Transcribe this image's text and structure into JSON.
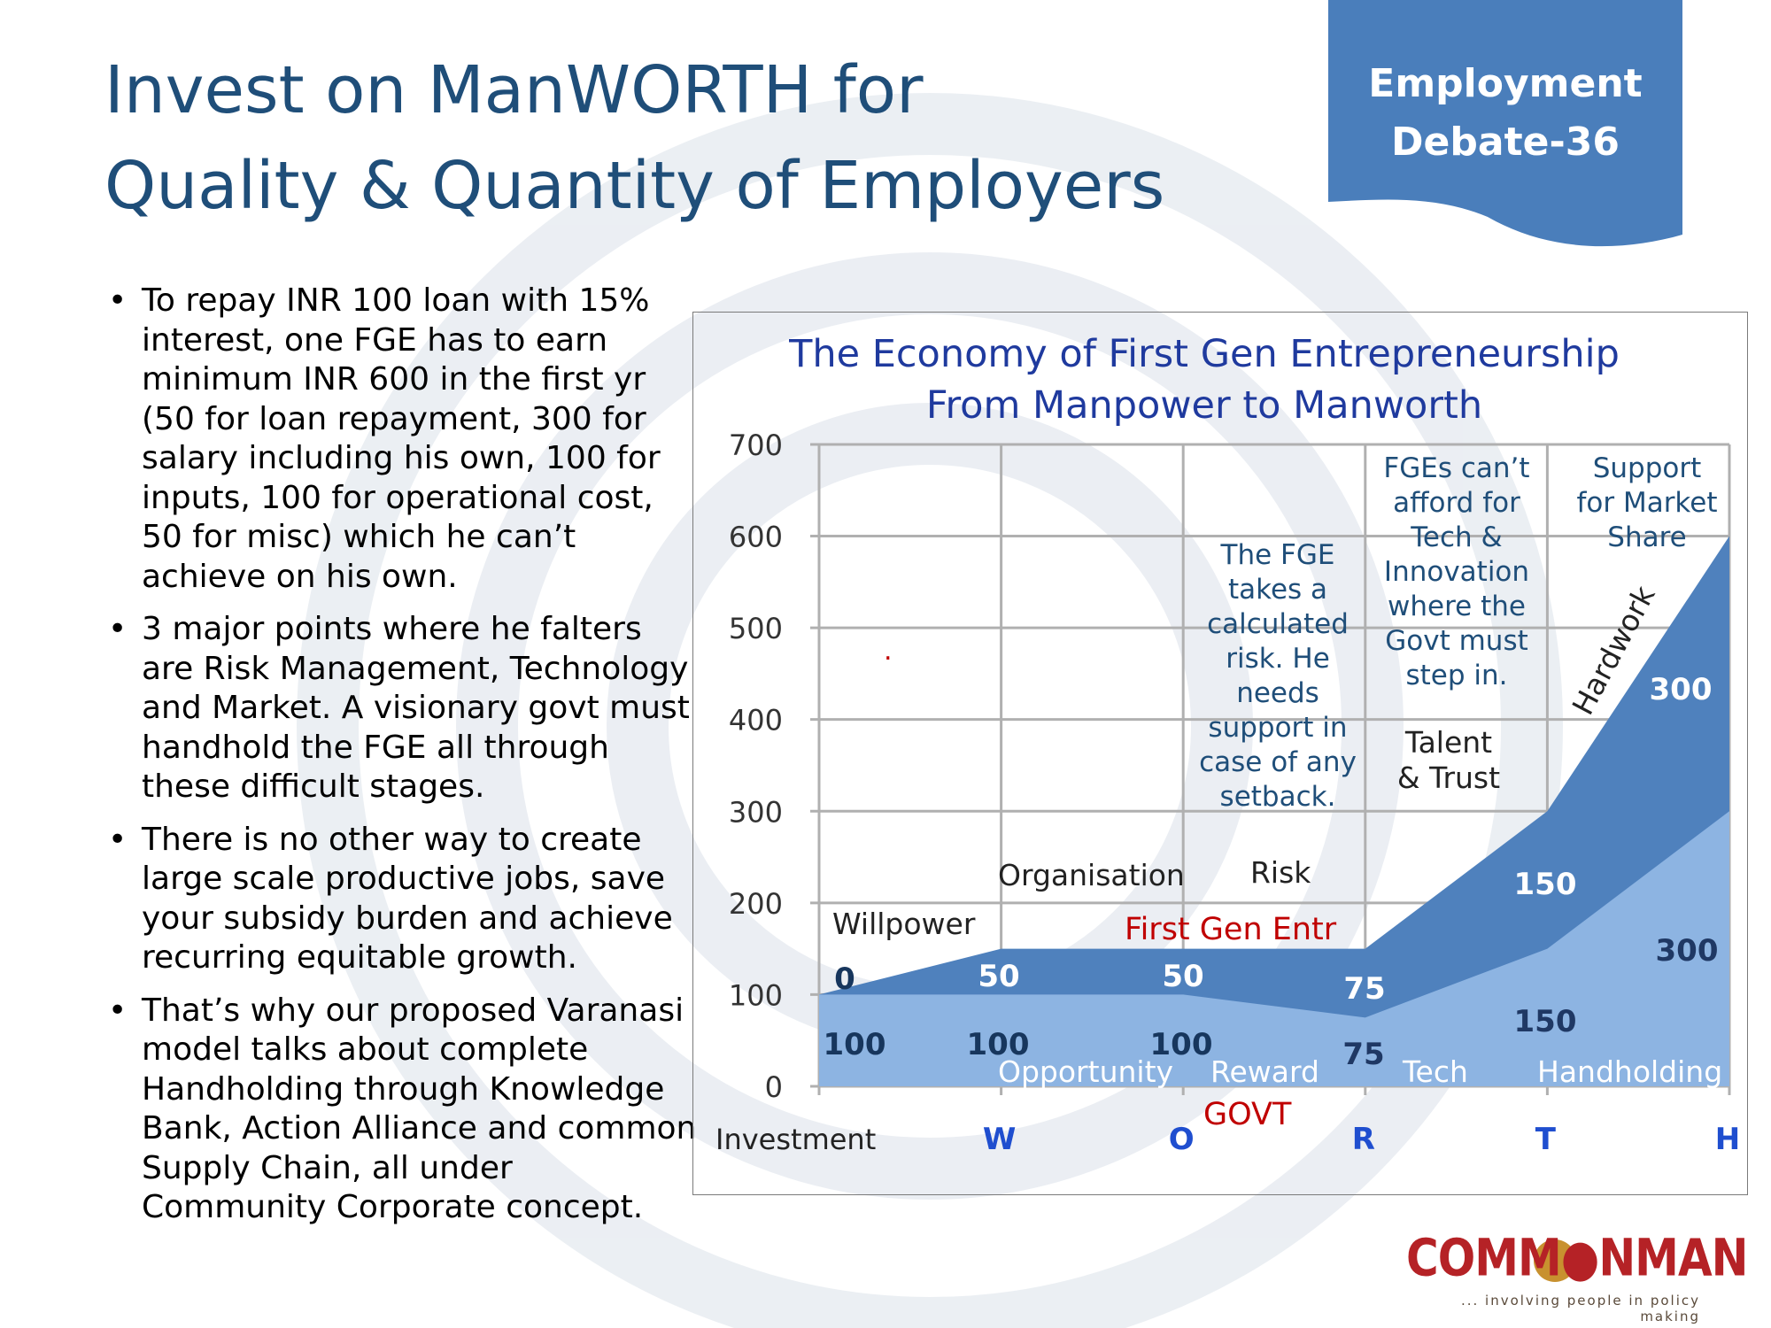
{
  "slide": {
    "title_line1": "Invest on ManWORTH for",
    "title_line2": "Quality & Quantity of Employers",
    "badge_line1": "Employment",
    "badge_line2": "Debate-36",
    "bullets": [
      "To repay INR 100 loan with 15% interest, one FGE has to earn minimum INR 600 in the first yr (50 for loan repayment, 300 for salary including his own, 100 for inputs, 100 for operational cost, 50 for misc) which he can’t achieve on his own.",
      "3 major points where he falters are Risk Management, Technology and Market. A visionary govt must handhold the FGE all through these difficult stages.",
      "There is no other way to create large scale productive jobs, save your subsidy burden and achieve recurring equitable growth.",
      "That’s why our proposed Varanasi model talks about complete Handholding through Knowledge Bank, Action Alliance and common Supply Chain, all under Community Corporate concept."
    ],
    "logo_text": "COMM●NMAN",
    "logo_tagline": "... involving people in policy making",
    "colors": {
      "title": "#1f4e79",
      "badge": "#4a7ebb",
      "logo": "#b52226"
    }
  },
  "chart_data": {
    "type": "area",
    "title_line1": "The Economy of First Gen Entrepreneurship",
    "title_line2": "From Manpower to Manworth",
    "x_title": "Investment",
    "categories": [
      "",
      "W",
      "O",
      "R",
      "T",
      "H"
    ],
    "ylim": [
      0,
      700
    ],
    "yticks": [
      0,
      100,
      200,
      300,
      400,
      500,
      600,
      700
    ],
    "grid": true,
    "stacked": true,
    "series": [
      {
        "values": [
          100,
          100,
          100,
          75,
          150,
          300
        ],
        "labels": [
          "100",
          "100",
          "100",
          "75",
          "150",
          "300"
        ],
        "color": "#8db4e2"
      },
      {
        "values": [
          0,
          50,
          50,
          75,
          150,
          300
        ],
        "labels": [
          "0",
          "50",
          "50",
          "75",
          "150",
          "300"
        ],
        "color": "#4f81bd"
      }
    ],
    "step_labels": [
      "Willpower",
      "Organisation",
      "Risk",
      "Talent",
      "& Trust",
      "Hardwork"
    ],
    "stage_labels": [
      "Opportunity",
      "Reward",
      "Tech",
      "Handholding"
    ],
    "annotations": {
      "first_gen": "First Gen Entr",
      "govt": "GOVT",
      "risk_note": [
        "The FGE",
        "takes a",
        "calculated",
        "risk. He",
        "needs",
        "support in",
        "case of any",
        "setback."
      ],
      "tech_note": [
        "FGEs can’t",
        "afford for",
        "Tech &",
        "Innovation",
        "where the",
        "Govt must",
        "step in."
      ],
      "market_note": [
        "Support",
        "for Market",
        "Share"
      ],
      "dot": "."
    },
    "colors": {
      "title": "#1f3a9e",
      "axis_letters": "#1f4ecf",
      "red": "#c00000",
      "note": "#1f4e79",
      "grid": "#b0b0b0"
    }
  }
}
